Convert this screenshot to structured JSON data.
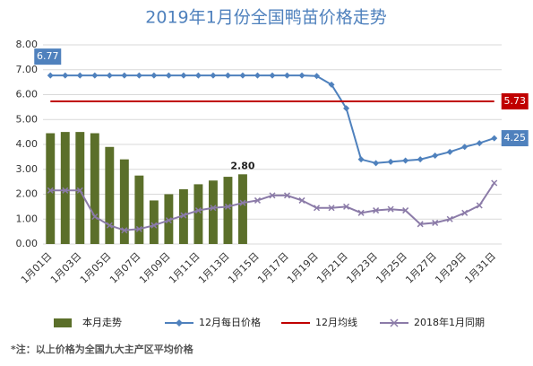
{
  "chart_data": {
    "type": "combo",
    "title": "2019年1月份全国鸭苗价格走势",
    "note": "*注：以上价格为全国九大主产区平均价格",
    "categories": [
      "1月01日",
      null,
      "1月03日",
      null,
      "1月05日",
      null,
      "1月07日",
      null,
      "1月09日",
      null,
      "1月11日",
      null,
      "1月13日",
      null,
      "1月15日",
      null,
      "1月17日",
      null,
      "1月19日",
      null,
      "1月21日",
      null,
      "1月23日",
      null,
      "1月25日",
      null,
      "1月27日",
      null,
      "1月29日",
      null,
      "1月31日"
    ],
    "ylim": [
      0,
      8
    ],
    "yticks": [
      {
        "value": 0,
        "label": "0.00"
      },
      {
        "value": 1,
        "label": "1.00"
      },
      {
        "value": 2,
        "label": "2.00"
      },
      {
        "value": 3,
        "label": "3.00"
      },
      {
        "value": 4,
        "label": "4.00"
      },
      {
        "value": 5,
        "label": "5.00"
      },
      {
        "value": 6,
        "label": "6.00"
      },
      {
        "value": 7,
        "label": "7.00"
      },
      {
        "value": 8,
        "label": "8.00"
      }
    ],
    "grid": true,
    "series": [
      {
        "name": "本月走势",
        "type": "bar",
        "color": "#5b6f2a",
        "values": [
          4.45,
          4.5,
          4.5,
          4.45,
          3.9,
          3.4,
          2.75,
          1.75,
          2.0,
          2.2,
          2.4,
          2.55,
          2.7,
          2.8,
          null,
          null,
          null,
          null,
          null,
          null,
          null,
          null,
          null,
          null,
          null,
          null,
          null,
          null,
          null,
          null,
          null
        ],
        "value_labels": [
          null,
          null,
          null,
          null,
          null,
          null,
          null,
          null,
          null,
          null,
          null,
          null,
          null,
          "2.80",
          null,
          null,
          null,
          null,
          null,
          null,
          null,
          null,
          null,
          null,
          null,
          null,
          null,
          null,
          null,
          null,
          null
        ]
      },
      {
        "name": "12月每日价格",
        "type": "line",
        "marker": "diamond",
        "color": "#4f81bd",
        "values": [
          6.77,
          6.77,
          6.77,
          6.77,
          6.77,
          6.77,
          6.77,
          6.77,
          6.77,
          6.77,
          6.77,
          6.77,
          6.77,
          6.77,
          6.77,
          6.77,
          6.77,
          6.77,
          6.75,
          6.4,
          5.45,
          3.4,
          3.25,
          3.3,
          3.35,
          3.4,
          3.55,
          3.7,
          3.9,
          4.05,
          4.25
        ],
        "value_labels": [
          "6.77",
          null,
          null,
          null,
          null,
          null,
          null,
          null,
          null,
          null,
          null,
          null,
          null,
          null,
          null,
          null,
          null,
          null,
          null,
          null,
          null,
          null,
          null,
          null,
          null,
          null,
          null,
          null,
          null,
          null,
          "4.25"
        ]
      },
      {
        "name": "12月均线",
        "type": "line",
        "marker": "none",
        "color": "#c00000",
        "values": [
          5.73,
          5.73,
          5.73,
          5.73,
          5.73,
          5.73,
          5.73,
          5.73,
          5.73,
          5.73,
          5.73,
          5.73,
          5.73,
          5.73,
          5.73,
          5.73,
          5.73,
          5.73,
          5.73,
          5.73,
          5.73,
          5.73,
          5.73,
          5.73,
          5.73,
          5.73,
          5.73,
          5.73,
          5.73,
          5.73,
          5.73
        ],
        "value_labels": [
          null,
          null,
          null,
          null,
          null,
          null,
          null,
          null,
          null,
          null,
          null,
          null,
          null,
          null,
          null,
          null,
          null,
          null,
          null,
          null,
          null,
          null,
          null,
          null,
          null,
          null,
          null,
          null,
          null,
          null,
          "5.73"
        ]
      },
      {
        "name": "2018年1月同期",
        "type": "line",
        "marker": "x",
        "color": "#8b7ba8",
        "values": [
          2.15,
          2.15,
          2.15,
          1.1,
          0.75,
          0.55,
          0.6,
          0.75,
          0.95,
          1.15,
          1.35,
          1.45,
          1.5,
          1.65,
          1.75,
          1.95,
          1.95,
          1.75,
          1.45,
          1.45,
          1.5,
          1.25,
          1.35,
          1.4,
          1.35,
          0.8,
          0.85,
          1.0,
          1.25,
          1.55,
          2.45
        ]
      }
    ]
  }
}
